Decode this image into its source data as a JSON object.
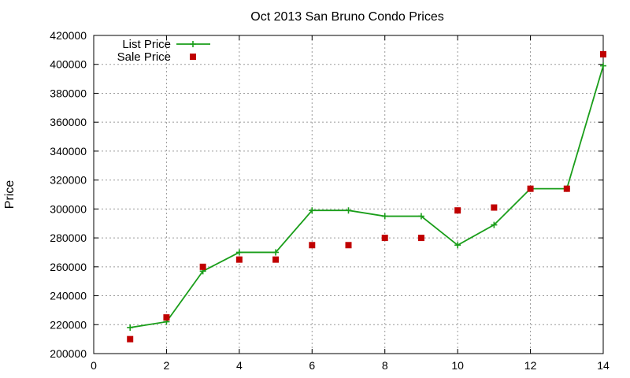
{
  "chart_data": {
    "type": "line",
    "title": "Oct 2013 San Bruno Condo Prices",
    "xlabel": "",
    "ylabel": "Price",
    "xlim": [
      0,
      14
    ],
    "ylim": [
      200000,
      420000
    ],
    "x_ticks": [
      0,
      2,
      4,
      6,
      8,
      10,
      12,
      14
    ],
    "y_ticks": [
      200000,
      220000,
      240000,
      260000,
      280000,
      300000,
      320000,
      340000,
      360000,
      380000,
      400000,
      420000
    ],
    "grid": true,
    "legend_position": "top-left",
    "series": [
      {
        "name": "List Price",
        "style": "line-with-plus-markers",
        "color": "#1a9e1a",
        "x": [
          1,
          2,
          3,
          4,
          5,
          6,
          7,
          8,
          9,
          10,
          11,
          12,
          13,
          14
        ],
        "values": [
          218000,
          222000,
          257000,
          270000,
          270000,
          299000,
          299000,
          295000,
          295000,
          275000,
          289000,
          314000,
          314000,
          399000
        ]
      },
      {
        "name": "Sale Price",
        "style": "square-markers",
        "color": "#c00000",
        "x": [
          1,
          2,
          3,
          4,
          5,
          6,
          7,
          8,
          9,
          10,
          11,
          12,
          13,
          14
        ],
        "values": [
          210000,
          225000,
          260000,
          265000,
          265000,
          275000,
          275000,
          280000,
          280000,
          299000,
          301000,
          314000,
          314000,
          407000
        ]
      }
    ]
  }
}
